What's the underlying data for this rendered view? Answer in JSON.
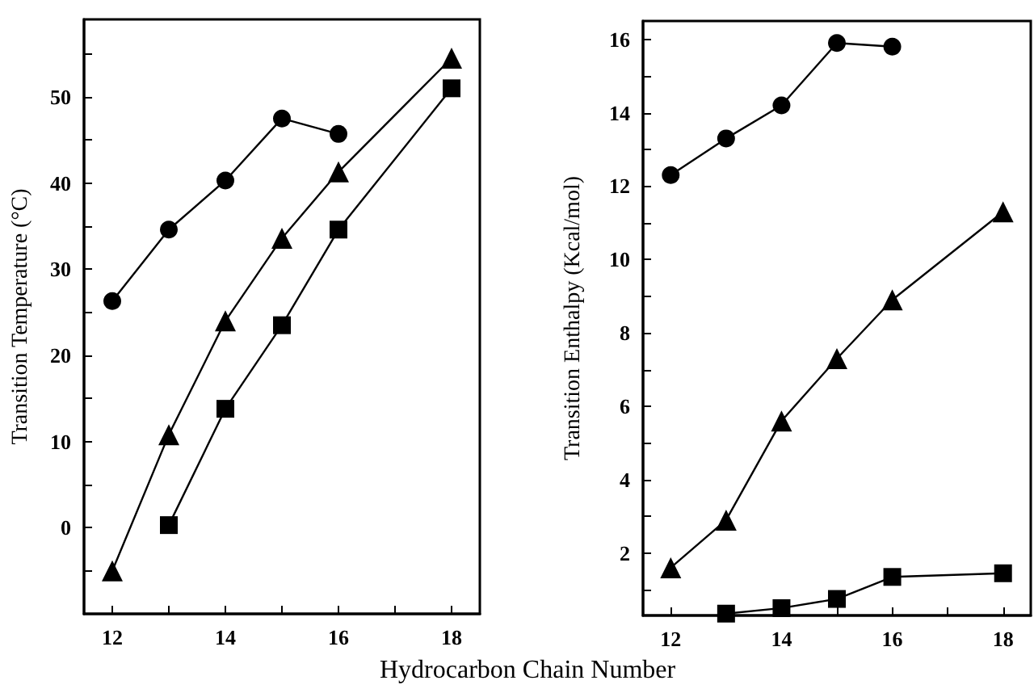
{
  "chart_data": [
    {
      "type": "line",
      "xlabel": "Hydrocarbon Chain Number",
      "ylabel": "Transition Temperature (°C)",
      "xlim": [
        11.5,
        18.5
      ],
      "ylim": [
        -10,
        59
      ],
      "xticks": [
        12,
        {
          "value": 13,
          "label": null
        },
        14,
        {
          "value": 15,
          "label": null
        },
        16,
        {
          "value": 17,
          "label": null
        },
        18
      ],
      "yticks": [
        {
          "value": -5,
          "label": null
        },
        0,
        {
          "value": 5,
          "label": null
        },
        10,
        {
          "value": 15,
          "label": null
        },
        20,
        {
          "value": 25,
          "label": null
        },
        30,
        {
          "value": 35,
          "label": null
        },
        40,
        {
          "value": 45,
          "label": null
        },
        50,
        {
          "value": 55,
          "label": null
        }
      ],
      "series": [
        {
          "color": "#000000",
          "marker": "circle",
          "x": [
            12,
            13,
            14,
            15,
            16
          ],
          "values": [
            26.3,
            34.6,
            40.3,
            47.5,
            45.7
          ]
        },
        {
          "color": "#000000",
          "marker": "triangle",
          "x": [
            12,
            13,
            14,
            15,
            16,
            18
          ],
          "values": [
            -5,
            10.8,
            24,
            33.6,
            41.3,
            54.5
          ]
        },
        {
          "color": "#000000",
          "marker": "square",
          "x": [
            13,
            14,
            15,
            16,
            18
          ],
          "values": [
            0.3,
            13.8,
            23.5,
            34.6,
            51
          ]
        }
      ]
    },
    {
      "type": "line",
      "ylabel": "Transition Enthalpy (Kcal/mol)",
      "xlim": [
        11.5,
        18.5
      ],
      "ylim": [
        0.3,
        16.5
      ],
      "xticks": [
        12,
        {
          "value": 13,
          "label": null
        },
        14,
        {
          "value": 15,
          "label": null
        },
        16,
        {
          "value": 17,
          "label": null
        },
        18
      ],
      "yticks": [
        {
          "value": 1,
          "label": null
        },
        2,
        {
          "value": 3,
          "label": null
        },
        4,
        {
          "value": 5,
          "label": null
        },
        6,
        {
          "value": 7,
          "label": null
        },
        8,
        {
          "value": 9,
          "label": null
        },
        10,
        {
          "value": 11,
          "label": null
        },
        12,
        {
          "value": 13,
          "label": null
        },
        14,
        {
          "value": 15,
          "label": null
        },
        16
      ],
      "series": [
        {
          "color": "#000000",
          "marker": "circle",
          "x": [
            12,
            13,
            14,
            15,
            16
          ],
          "values": [
            12.3,
            13.3,
            14.2,
            15.9,
            15.8
          ]
        },
        {
          "color": "#000000",
          "marker": "triangle",
          "x": [
            12,
            13,
            14,
            15,
            16,
            18
          ],
          "values": [
            1.6,
            2.9,
            5.6,
            7.3,
            8.9,
            11.3
          ]
        },
        {
          "color": "#000000",
          "marker": "square",
          "x": [
            13,
            14,
            15,
            16,
            18
          ],
          "values": [
            0.35,
            0.5,
            0.75,
            1.35,
            1.45
          ]
        }
      ]
    }
  ]
}
